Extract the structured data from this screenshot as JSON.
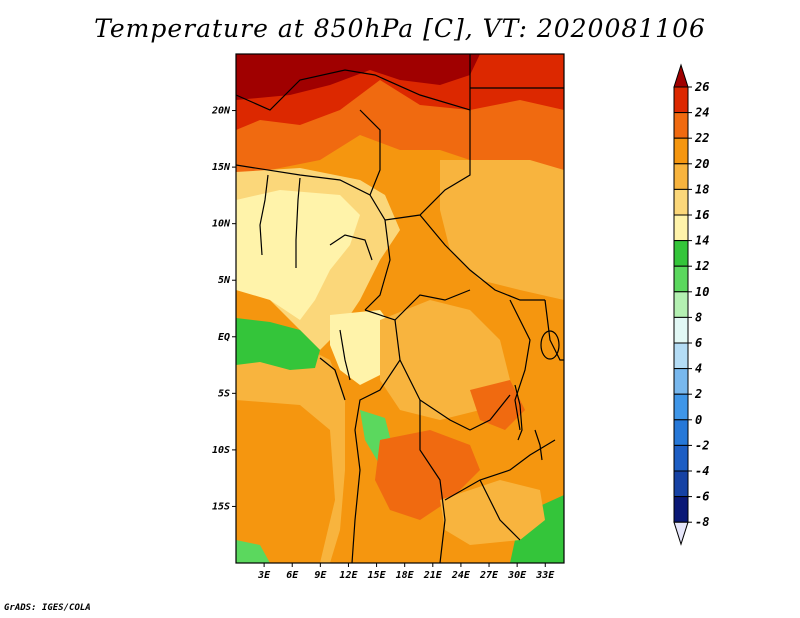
{
  "title": "Temperature at 850hPa [C], VT: 2020081106",
  "credit": "GrADS: IGES/COLA",
  "map": {
    "lon_range": [
      0,
      35
    ],
    "lat_range": [
      -20,
      25
    ],
    "lat_ticks": [
      {
        "value": 20,
        "label": "20N"
      },
      {
        "value": 15,
        "label": "15N"
      },
      {
        "value": 10,
        "label": "10N"
      },
      {
        "value": 5,
        "label": "5N"
      },
      {
        "value": 0,
        "label": "EQ"
      },
      {
        "value": -5,
        "label": "5S"
      },
      {
        "value": -10,
        "label": "10S"
      },
      {
        "value": -15,
        "label": "15S"
      }
    ],
    "lon_ticks": [
      {
        "value": 3,
        "label": "3E"
      },
      {
        "value": 6,
        "label": "6E"
      },
      {
        "value": 9,
        "label": "9E"
      },
      {
        "value": 12,
        "label": "12E"
      },
      {
        "value": 15,
        "label": "15E"
      },
      {
        "value": 18,
        "label": "18E"
      },
      {
        "value": 21,
        "label": "21E"
      },
      {
        "value": 24,
        "label": "24E"
      },
      {
        "value": 27,
        "label": "27E"
      },
      {
        "value": 30,
        "label": "30E"
      },
      {
        "value": 33,
        "label": "33E"
      }
    ]
  },
  "colorbar": {
    "bins": [
      {
        "label": "26",
        "color": "#a00000"
      },
      {
        "label": "24",
        "color": "#dc2800"
      },
      {
        "label": "22",
        "color": "#f06a10"
      },
      {
        "label": "20",
        "color": "#f5960f"
      },
      {
        "label": "18",
        "color": "#f8b43e"
      },
      {
        "label": "16",
        "color": "#fbd77a"
      },
      {
        "label": "14",
        "color": "#fff3aa"
      },
      {
        "label": "12",
        "color": "#34c53a"
      },
      {
        "label": "10",
        "color": "#5bd85e"
      },
      {
        "label": "8",
        "color": "#b4f0b2"
      },
      {
        "label": "6",
        "color": "#e2f8f5"
      },
      {
        "label": "4",
        "color": "#b4dcf5"
      },
      {
        "label": "2",
        "color": "#78b8ee"
      },
      {
        "label": "0",
        "color": "#3f96e8"
      },
      {
        "label": "-2",
        "color": "#2678d8"
      },
      {
        "label": "-4",
        "color": "#1d5ec4"
      },
      {
        "label": "-6",
        "color": "#1642a4"
      },
      {
        "label": "-8",
        "color": "#0a1876"
      }
    ],
    "low_color": "#e6e6fa"
  }
}
